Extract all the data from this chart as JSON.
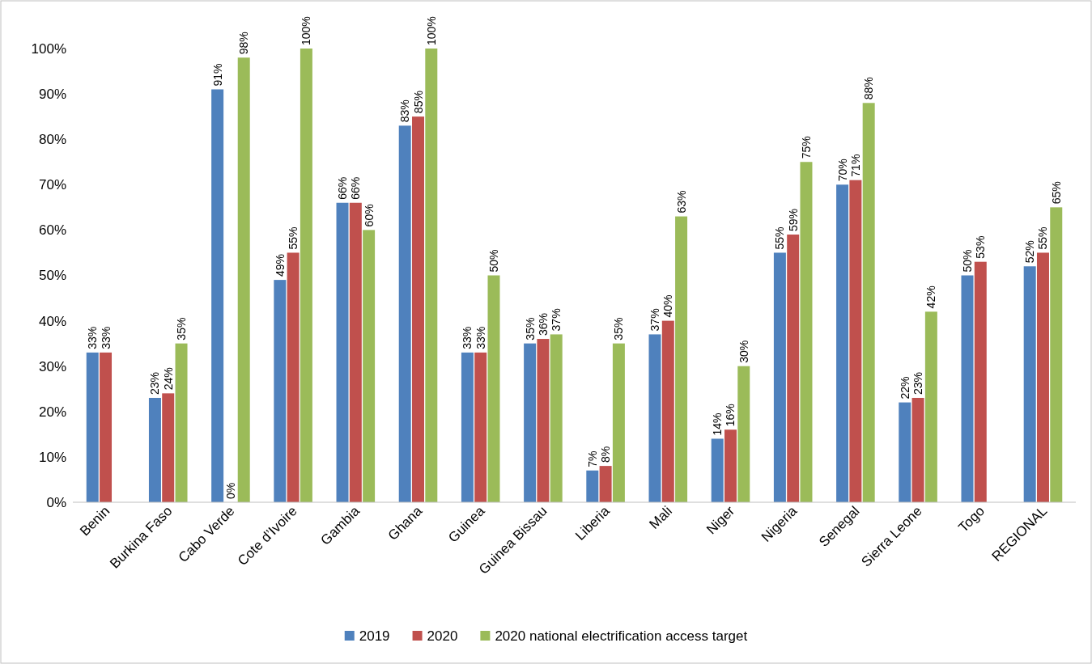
{
  "chart_data": {
    "type": "bar",
    "categories": [
      "Benin",
      "Burkina Faso",
      "Cabo Verde",
      "Cote d’Ivoire",
      "Gambia",
      "Ghana",
      "Guinea",
      "Guinea Bissau",
      "Liberia",
      "Mali",
      "Niger",
      "Nigeria",
      "Senegal",
      "Sierra Leone",
      "Togo",
      "REGIONAL"
    ],
    "series": [
      {
        "name": "2019",
        "color": "#4f81bd",
        "values": [
          33,
          23,
          91,
          49,
          66,
          83,
          33,
          35,
          7,
          37,
          14,
          55,
          70,
          22,
          50,
          52
        ],
        "value_labels": [
          "33%",
          "23%",
          "91%",
          "49%",
          "66%",
          "83%",
          "33%",
          "35%",
          "7%",
          "37%",
          "14%",
          "55%",
          "70%",
          "22%",
          "50%",
          "52%"
        ]
      },
      {
        "name": "2020",
        "color": "#c0504d",
        "values": [
          33,
          24,
          0,
          55,
          66,
          85,
          33,
          36,
          8,
          40,
          16,
          59,
          71,
          23,
          53,
          55
        ],
        "value_labels": [
          "33%",
          "24%",
          "0%",
          "55%",
          "66%",
          "85%",
          "33%",
          "36%",
          "8%",
          "40%",
          "16%",
          "59%",
          "71%",
          "23%",
          "53%",
          "55%"
        ]
      },
      {
        "name": "2020 national electrification access target",
        "color": "#9bbb59",
        "values": [
          null,
          35,
          98,
          100,
          60,
          100,
          50,
          37,
          35,
          63,
          30,
          75,
          88,
          42,
          null,
          65
        ],
        "value_labels": [
          null,
          "35%",
          "98%",
          "100%",
          "60%",
          "100%",
          "50%",
          "37%",
          "35%",
          "63%",
          "30%",
          "75%",
          "88%",
          "42%",
          null,
          "65%"
        ]
      }
    ],
    "ylim": [
      0,
      100
    ],
    "yticks": [
      {
        "value": 0,
        "label": "0%"
      },
      {
        "value": 10,
        "label": "10%"
      },
      {
        "value": 20,
        "label": "20%"
      },
      {
        "value": 30,
        "label": "30%"
      },
      {
        "value": 40,
        "label": "40%"
      },
      {
        "value": 50,
        "label": "50%"
      },
      {
        "value": 60,
        "label": "60%"
      },
      {
        "value": 70,
        "label": "70%"
      },
      {
        "value": 80,
        "label": "80%"
      },
      {
        "value": 90,
        "label": "90%"
      },
      {
        "value": 100,
        "label": "100%"
      }
    ],
    "legend": "bottom"
  }
}
